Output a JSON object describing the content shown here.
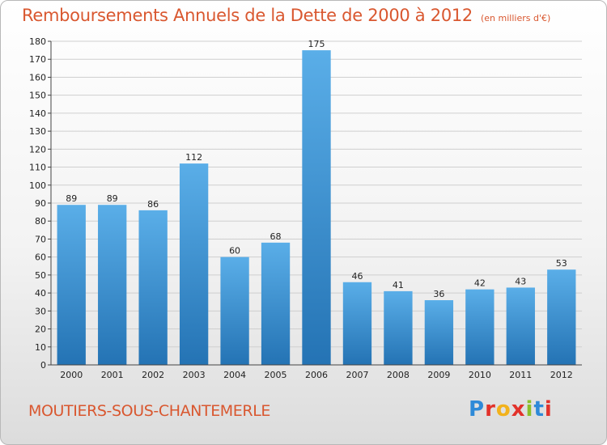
{
  "title": "Remboursements Annuels de la Dette de 2000 à 2012",
  "unit_note": "(en milliers d'€)",
  "commune": "MOUTIERS-SOUS-CHANTEMERLE",
  "brand": {
    "letters": [
      "P",
      "r",
      "o",
      "x",
      "i",
      "t",
      "i"
    ],
    "colors": [
      "#2e8ad8",
      "#e2322b",
      "#f2b21c",
      "#e2322b",
      "#8cbf2a",
      "#2e8ad8",
      "#e2322b"
    ]
  },
  "colors": {
    "accent": "#d9572f",
    "bar_top": "#5aaee8",
    "bar_bottom": "#2473b4",
    "grid": "#cfcfcf"
  },
  "chart_data": {
    "type": "bar",
    "categories": [
      "2000",
      "2001",
      "2002",
      "2003",
      "2004",
      "2005",
      "2006",
      "2007",
      "2008",
      "2009",
      "2010",
      "2011",
      "2012"
    ],
    "values": [
      89,
      89,
      86,
      112,
      60,
      68,
      175,
      46,
      41,
      36,
      42,
      43,
      53
    ],
    "data_labels": [
      "89",
      "89",
      "86",
      "112",
      "60",
      "68",
      "175",
      "46",
      "41",
      "36",
      "42",
      "43",
      "53"
    ],
    "ylim": [
      0,
      180
    ],
    "yticks": [
      "0",
      "10",
      "20",
      "30",
      "40",
      "50",
      "60",
      "70",
      "80",
      "90",
      "100",
      "110",
      "120",
      "130",
      "140",
      "150",
      "160",
      "170",
      "180"
    ],
    "grid": true
  }
}
